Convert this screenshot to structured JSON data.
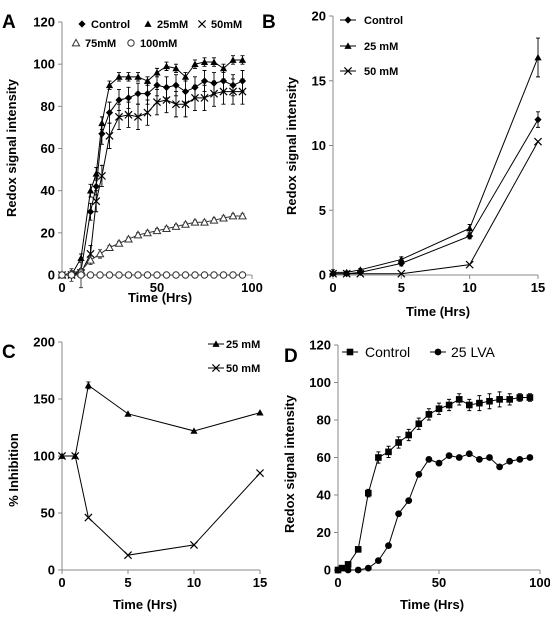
{
  "chart_data": [
    {
      "panel": "A",
      "type": "line",
      "xlabel": "Time (Hrs)",
      "ylabel": "Redox signal intensity",
      "xlim": [
        0,
        100
      ],
      "ylim": [
        0,
        120
      ],
      "xticks": [
        0,
        50,
        100
      ],
      "yticks": [
        0,
        20,
        40,
        60,
        80,
        100,
        120
      ],
      "series": [
        {
          "name": "Control",
          "marker": "diamond",
          "color": "#000000",
          "x": [
            0,
            5,
            10,
            15,
            18,
            21,
            25,
            30,
            35,
            40,
            45,
            50,
            55,
            60,
            65,
            70,
            75,
            80,
            85,
            90,
            95
          ],
          "y": [
            0,
            0,
            2,
            30,
            42,
            67,
            77,
            83,
            84,
            86,
            86,
            90,
            89,
            90,
            87,
            89,
            92,
            91,
            92,
            90,
            92
          ],
          "err": [
            0,
            0,
            1,
            4,
            4,
            5,
            5,
            5,
            5,
            5,
            5,
            5,
            5,
            5,
            5,
            5,
            5,
            5,
            5,
            5,
            5
          ]
        },
        {
          "name": "25mM",
          "marker": "triangle",
          "color": "#000000",
          "x": [
            0,
            5,
            10,
            15,
            18,
            21,
            25,
            30,
            35,
            40,
            45,
            50,
            55,
            60,
            65,
            70,
            75,
            80,
            85,
            90,
            95
          ],
          "y": [
            0,
            0,
            8,
            40,
            48,
            72,
            90,
            94,
            94,
            94,
            92,
            96,
            99,
            98,
            94,
            100,
            101,
            101,
            98,
            102,
            102
          ],
          "err": [
            0,
            0,
            2,
            3,
            3,
            3,
            2,
            2,
            2,
            2,
            2,
            2,
            2,
            2,
            2,
            2,
            2,
            2,
            2,
            2,
            2
          ]
        },
        {
          "name": "50mM",
          "marker": "x",
          "color": "#000000",
          "x": [
            0,
            5,
            10,
            15,
            18,
            21,
            25,
            30,
            35,
            40,
            45,
            50,
            55,
            60,
            65,
            70,
            75,
            80,
            85,
            90,
            95
          ],
          "y": [
            0,
            0,
            1,
            10,
            35,
            47,
            66,
            75,
            76,
            75,
            77,
            82,
            83,
            81,
            81,
            84,
            84,
            86,
            87,
            87,
            87
          ],
          "err": [
            0,
            0,
            1,
            4,
            5,
            5,
            6,
            6,
            6,
            6,
            6,
            6,
            6,
            6,
            6,
            6,
            6,
            6,
            6,
            6,
            6
          ]
        },
        {
          "name": "75mM",
          "marker": "open-triangle",
          "color": "#333333",
          "x": [
            0,
            5,
            10,
            15,
            20,
            25,
            30,
            35,
            40,
            45,
            50,
            55,
            60,
            65,
            70,
            75,
            80,
            85,
            90,
            95
          ],
          "y": [
            0,
            1,
            2,
            7,
            10,
            13,
            15,
            17,
            19,
            20,
            21,
            22,
            23,
            24,
            25,
            25,
            26,
            27,
            28,
            28
          ],
          "err": [
            0,
            1,
            1,
            2,
            2,
            1,
            1,
            1,
            1,
            1,
            1,
            1,
            1,
            1,
            1,
            1,
            1,
            1,
            1,
            1
          ]
        },
        {
          "name": "100mM",
          "marker": "open-circle",
          "color": "#333333",
          "x": [
            0,
            5,
            10,
            15,
            20,
            25,
            30,
            35,
            40,
            45,
            50,
            55,
            60,
            65,
            70,
            75,
            80,
            85,
            90,
            95
          ],
          "y": [
            0,
            0,
            0,
            0,
            0,
            0,
            0,
            0,
            0,
            0,
            0,
            0,
            0,
            0,
            0,
            0,
            0,
            0,
            0,
            0
          ],
          "err": [
            0,
            3,
            6,
            0,
            0,
            0,
            0,
            0,
            0,
            0,
            0,
            0,
            0,
            0,
            0,
            0,
            0,
            0,
            0,
            0
          ]
        }
      ]
    },
    {
      "panel": "B",
      "type": "line",
      "xlabel": "Time (Hrs)",
      "ylabel": "Redox signal intensity",
      "xlim": [
        0,
        15
      ],
      "ylim": [
        0,
        20
      ],
      "xticks": [
        0,
        5,
        10,
        15
      ],
      "yticks": [
        0,
        5,
        10,
        15,
        20
      ],
      "series": [
        {
          "name": "Control",
          "marker": "diamond",
          "color": "#000000",
          "x": [
            0,
            1,
            2,
            5,
            10,
            15
          ],
          "y": [
            0.1,
            0.1,
            0.2,
            0.9,
            3.0,
            12.0
          ],
          "err": [
            0,
            0,
            0,
            0.2,
            0.2,
            0.6
          ]
        },
        {
          "name": "25 mM",
          "marker": "triangle",
          "color": "#000000",
          "x": [
            0,
            1,
            2,
            5,
            10,
            15
          ],
          "y": [
            0.2,
            0.2,
            0.4,
            1.2,
            3.6,
            16.8
          ],
          "err": [
            0.2,
            0.1,
            0.1,
            0.2,
            0.3,
            1.5
          ]
        },
        {
          "name": "50 mM",
          "marker": "x",
          "color": "#000000",
          "x": [
            0,
            1,
            2,
            5,
            10,
            15
          ],
          "y": [
            0.1,
            0.1,
            0.1,
            0.1,
            0.8,
            10.3
          ],
          "err": [
            0,
            0,
            0,
            0,
            0,
            0
          ]
        }
      ]
    },
    {
      "panel": "C",
      "type": "line",
      "xlabel": "Time (Hrs)",
      "ylabel": "% Inhibition",
      "xlim": [
        0,
        15
      ],
      "ylim": [
        0,
        200
      ],
      "xticks": [
        0,
        5,
        10,
        15
      ],
      "yticks": [
        0,
        50,
        100,
        150,
        200
      ],
      "series": [
        {
          "name": "25 mM",
          "marker": "triangle",
          "color": "#000000",
          "x": [
            0,
            1,
            2,
            5,
            10,
            15
          ],
          "y": [
            100,
            100,
            162,
            137,
            122,
            138
          ],
          "err": [
            0,
            0,
            3,
            0,
            0,
            0
          ]
        },
        {
          "name": "50 mM",
          "marker": "x",
          "color": "#000000",
          "x": [
            0,
            1,
            2,
            5,
            10,
            15
          ],
          "y": [
            100,
            100,
            46,
            13,
            22,
            85
          ],
          "err": [
            0,
            0,
            0,
            0,
            0,
            0
          ]
        }
      ]
    },
    {
      "panel": "D",
      "type": "line",
      "xlabel": "Time (Hrs)",
      "ylabel": "Redox signal intensity",
      "xlim": [
        0,
        100
      ],
      "ylim": [
        0,
        120
      ],
      "xticks": [
        0,
        50,
        100
      ],
      "yticks": [
        0,
        20,
        40,
        60,
        80,
        100,
        120
      ],
      "series": [
        {
          "name": "Control",
          "marker": "square",
          "color": "#000000",
          "x": [
            0,
            2,
            5,
            10,
            15,
            20,
            25,
            30,
            35,
            40,
            45,
            50,
            55,
            60,
            65,
            70,
            75,
            80,
            85,
            90,
            95
          ],
          "y": [
            0,
            1,
            3,
            11,
            41,
            60,
            63,
            68,
            72,
            78,
            83,
            86,
            88,
            91,
            88,
            89,
            90,
            91,
            91,
            92,
            92
          ],
          "err": [
            0,
            1,
            1,
            1,
            2,
            3,
            3,
            3,
            3,
            3,
            3,
            3,
            3,
            3,
            3,
            4,
            4,
            4,
            3,
            2,
            2
          ]
        },
        {
          "name": "25 LVA",
          "marker": "circle",
          "color": "#000000",
          "x": [
            0,
            5,
            10,
            15,
            20,
            25,
            30,
            35,
            40,
            45,
            50,
            55,
            60,
            65,
            70,
            75,
            80,
            85,
            90,
            95
          ],
          "y": [
            0,
            0,
            0,
            1,
            5,
            13,
            30,
            37,
            51,
            59,
            57,
            61,
            60,
            62,
            59,
            60,
            55,
            58,
            59,
            60
          ],
          "err": [
            0,
            0,
            0,
            0,
            0,
            1,
            1,
            1,
            1,
            1,
            1,
            1,
            1,
            1,
            1,
            1,
            1,
            1,
            1,
            1
          ]
        }
      ]
    }
  ]
}
